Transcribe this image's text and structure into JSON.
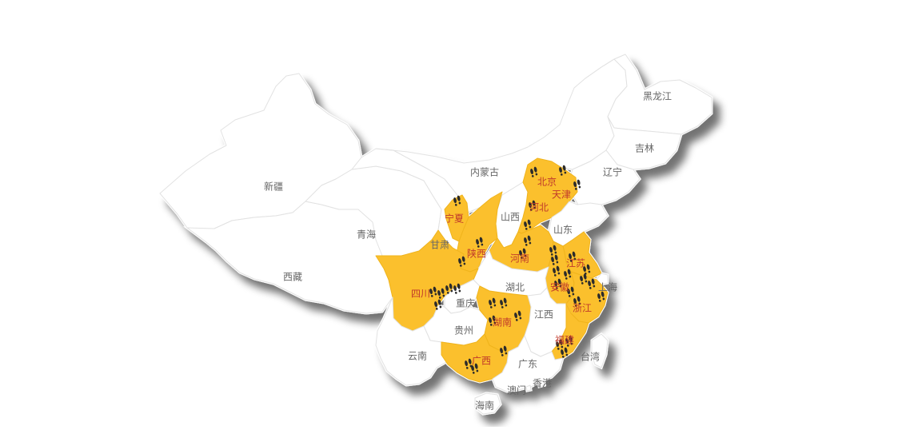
{
  "map": {
    "colors": {
      "land": "#ffffff",
      "border": "#e2e2e2",
      "visited": "#fbc02d",
      "visited_border": "#f0b41c",
      "label": "#666666",
      "label_visited": "#c0392b",
      "footprint": "#2b2b2b"
    },
    "provinces": [
      {
        "id": "xinjiang",
        "name": "新疆",
        "visited": false
      },
      {
        "id": "xizang",
        "name": "西藏",
        "visited": false
      },
      {
        "id": "qinghai",
        "name": "青海",
        "visited": false
      },
      {
        "id": "gansu",
        "name": "甘肃",
        "visited": false
      },
      {
        "id": "neimenggu",
        "name": "内蒙古",
        "visited": false
      },
      {
        "id": "heilongjiang",
        "name": "黑龙江",
        "visited": false
      },
      {
        "id": "jilin",
        "name": "吉林",
        "visited": false
      },
      {
        "id": "liaoning",
        "name": "辽宁",
        "visited": false
      },
      {
        "id": "ningxia",
        "name": "宁夏",
        "visited": true
      },
      {
        "id": "shanxi",
        "name": "山西",
        "visited": false
      },
      {
        "id": "shaanxi",
        "name": "陕西",
        "visited": true
      },
      {
        "id": "beijing",
        "name": "北京",
        "visited": true
      },
      {
        "id": "tianjin",
        "name": "天津",
        "visited": true
      },
      {
        "id": "hebei",
        "name": "河北",
        "visited": true
      },
      {
        "id": "shandong",
        "name": "山东",
        "visited": false
      },
      {
        "id": "henan",
        "name": "河南",
        "visited": true
      },
      {
        "id": "jiangsu",
        "name": "江苏",
        "visited": true
      },
      {
        "id": "shanghai",
        "name": "上海",
        "visited": false
      },
      {
        "id": "anhui",
        "name": "安徽",
        "visited": true
      },
      {
        "id": "zhejiang",
        "name": "浙江",
        "visited": true
      },
      {
        "id": "hubei",
        "name": "湖北",
        "visited": false
      },
      {
        "id": "sichuan",
        "name": "四川",
        "visited": true
      },
      {
        "id": "chongqing",
        "name": "重庆",
        "visited": false
      },
      {
        "id": "guizhou",
        "name": "贵州",
        "visited": false
      },
      {
        "id": "hunan",
        "name": "湖南",
        "visited": true
      },
      {
        "id": "jiangxi",
        "name": "江西",
        "visited": false
      },
      {
        "id": "fujian",
        "name": "福建",
        "visited": true
      },
      {
        "id": "taiwan",
        "name": "台湾",
        "visited": false
      },
      {
        "id": "yunnan",
        "name": "云南",
        "visited": false
      },
      {
        "id": "guangxi",
        "name": "广西",
        "visited": true
      },
      {
        "id": "guangdong",
        "name": "广东",
        "visited": false
      },
      {
        "id": "hongkong",
        "name": "香港",
        "visited": false
      },
      {
        "id": "macau",
        "name": "澳门",
        "visited": false
      },
      {
        "id": "hainan",
        "name": "海南",
        "visited": false
      }
    ],
    "footprint_icon": "footprint-icon"
  }
}
